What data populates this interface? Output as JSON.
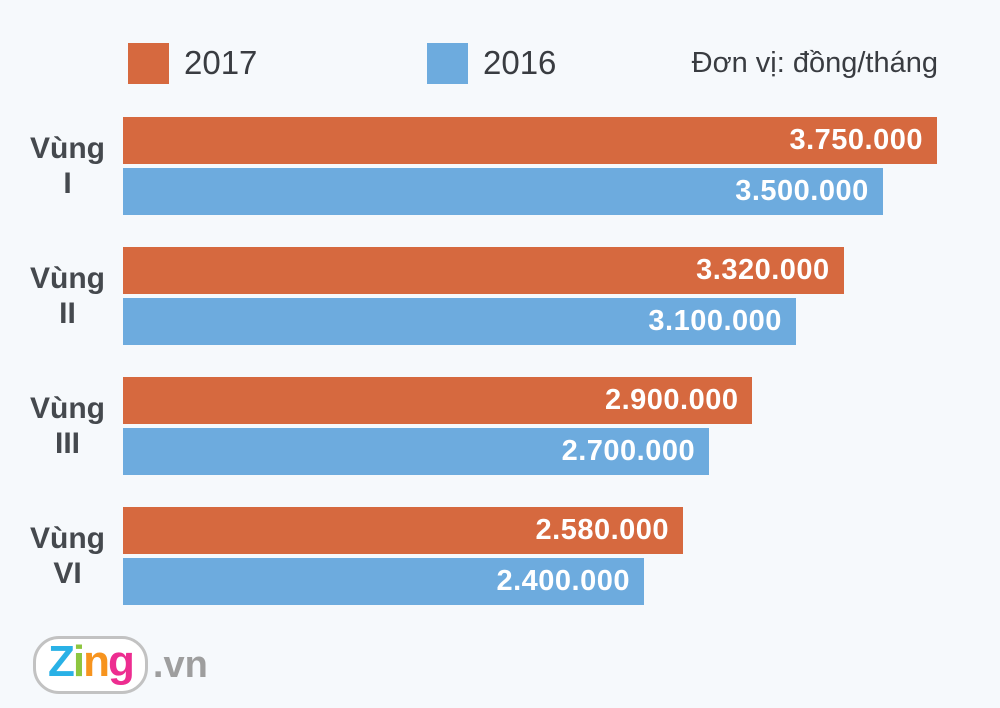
{
  "colors": {
    "background": "#f6f9fc",
    "series_2017": "#d6693f",
    "series_2016": "#6dabde",
    "category_text": "#45494e",
    "legend_text": "#393c41",
    "value_text": "#ffffff"
  },
  "legend": {
    "items": [
      {
        "label": "2017",
        "color": "#d6693f"
      },
      {
        "label": "2016",
        "color": "#6dabde"
      }
    ],
    "unit_note": "Đơn vị: đồng/tháng"
  },
  "chart_data": {
    "type": "bar",
    "orientation": "horizontal",
    "title": "",
    "categories": [
      "Vùng I",
      "Vùng II",
      "Vùng III",
      "Vùng VI"
    ],
    "category_lines": [
      [
        "Vùng",
        "I"
      ],
      [
        "Vùng",
        "II"
      ],
      [
        "Vùng",
        "III"
      ],
      [
        "Vùng",
        "VI"
      ]
    ],
    "series": [
      {
        "name": "2017",
        "color": "#d6693f",
        "values": [
          3750000,
          3320000,
          2900000,
          2580000
        ],
        "labels": [
          "3.750.000",
          "3.320.000",
          "2.900.000",
          "2.580.000"
        ]
      },
      {
        "name": "2016",
        "color": "#6dabde",
        "values": [
          3500000,
          3100000,
          2700000,
          2400000
        ],
        "labels": [
          "3.500.000",
          "3.100.000",
          "2.700.000",
          "2.400.000"
        ]
      }
    ],
    "xlim": [
      0,
      3750000
    ],
    "grid": false,
    "legend_position": "top",
    "value_labels": "inside-end",
    "unit_note": "Đơn vị: đồng/tháng"
  },
  "footer": {
    "logo": {
      "word": "Zing",
      "letters": [
        {
          "char": "Z",
          "color": "#29b1e6"
        },
        {
          "char": "i",
          "color": "#8dc63f"
        },
        {
          "char": "n",
          "color": "#f7941e"
        },
        {
          "char": "g",
          "color": "#ed2d90"
        }
      ],
      "suffix": ".vn",
      "suffix_color": "#9e9e9e",
      "pill_border": "#c2c2c2"
    }
  }
}
